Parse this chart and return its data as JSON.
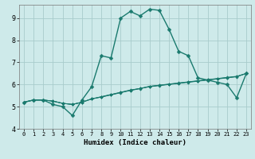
{
  "title": "",
  "xlabel": "Humidex (Indice chaleur)",
  "background_color": "#ceeaea",
  "grid_color": "#a8cccc",
  "line_color": "#1a7a6e",
  "xlim": [
    -0.5,
    23.5
  ],
  "ylim": [
    4,
    9.6
  ],
  "yticks": [
    4,
    5,
    6,
    7,
    8,
    9
  ],
  "xticks": [
    0,
    1,
    2,
    3,
    4,
    5,
    6,
    7,
    8,
    9,
    10,
    11,
    12,
    13,
    14,
    15,
    16,
    17,
    18,
    19,
    20,
    21,
    22,
    23
  ],
  "series": [
    [
      5.2,
      5.3,
      5.3,
      5.1,
      5.0,
      4.6,
      5.3,
      5.9,
      7.3,
      7.2,
      9.0,
      9.3,
      9.1,
      9.4,
      9.35,
      8.5,
      7.5,
      7.3,
      6.3,
      6.2,
      6.1,
      6.0,
      5.4,
      6.5
    ],
    [
      5.2,
      5.3,
      5.3,
      5.25,
      5.15,
      5.1,
      5.2,
      5.35,
      5.45,
      5.55,
      5.65,
      5.75,
      5.82,
      5.9,
      5.95,
      6.0,
      6.05,
      6.1,
      6.15,
      6.2,
      6.25,
      6.3,
      6.35,
      6.5
    ],
    [
      5.2,
      5.3,
      5.3,
      5.25,
      5.15,
      5.1,
      5.2,
      5.35,
      5.44,
      5.54,
      5.64,
      5.74,
      5.82,
      5.92,
      5.97,
      6.02,
      6.07,
      6.12,
      6.17,
      6.22,
      6.27,
      6.32,
      6.37,
      6.5
    ],
    [
      5.2,
      5.3,
      5.3,
      5.25,
      5.15,
      5.1,
      5.2,
      5.35,
      5.43,
      5.53,
      5.63,
      5.73,
      5.81,
      5.91,
      5.96,
      6.01,
      6.06,
      6.11,
      6.16,
      6.21,
      6.26,
      6.31,
      6.36,
      6.5
    ]
  ]
}
